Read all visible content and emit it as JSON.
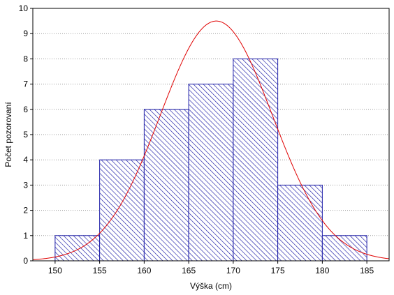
{
  "chart_data": {
    "type": "bar",
    "title": "",
    "xlabel": "Výška (cm)",
    "ylabel": "Počet pozorovaní",
    "xlim": [
      147.5,
      187.5
    ],
    "ylim": [
      0,
      10
    ],
    "x_ticks": [
      "150",
      "155",
      "160",
      "165",
      "170",
      "175",
      "180",
      "185"
    ],
    "y_ticks": [
      "0",
      "1",
      "2",
      "3",
      "4",
      "5",
      "6",
      "7",
      "8",
      "9",
      "10"
    ],
    "grid": "horizontal dotted",
    "bins": [
      {
        "from": 150,
        "to": 155,
        "count": 1
      },
      {
        "from": 155,
        "to": 160,
        "count": 4
      },
      {
        "from": 160,
        "to": 165,
        "count": 6
      },
      {
        "from": 165,
        "to": 170,
        "count": 7
      },
      {
        "from": 170,
        "to": 175,
        "count": 8
      },
      {
        "from": 175,
        "to": 180,
        "count": 3
      },
      {
        "from": 180,
        "to": 185,
        "count": 1
      }
    ],
    "normal_curve": {
      "mean": 168.1,
      "sd": 6.3,
      "n": 30,
      "bin_width": 5
    },
    "colors": {
      "bar_edge": "#1a1aa6",
      "bar_hatch": "#1a1aa6",
      "curve": "#e00000",
      "axis": "#000000"
    }
  }
}
